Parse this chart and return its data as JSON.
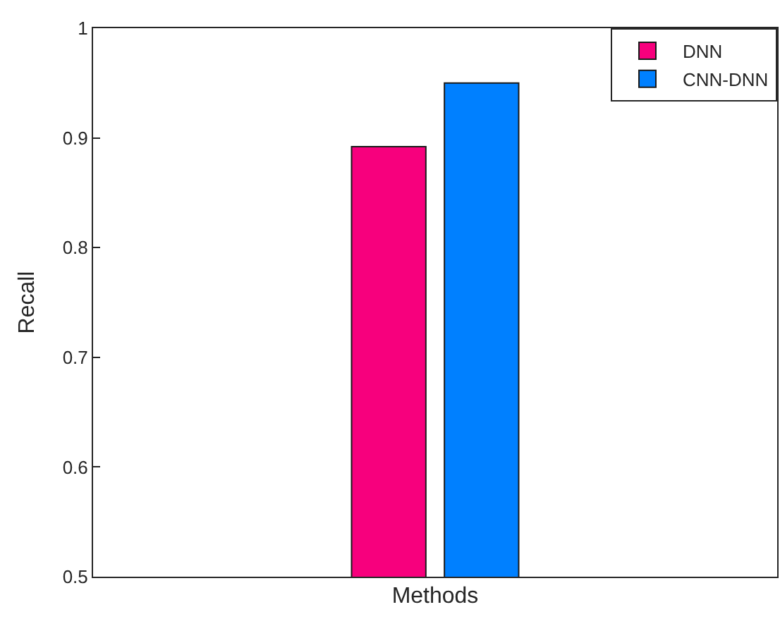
{
  "chart_data": {
    "type": "bar",
    "xlabel": "Methods",
    "ylabel": "Recall",
    "categories": [
      null
    ],
    "series": [
      {
        "name": "DNN",
        "color": "#f7007d",
        "values": [
          0.892
        ]
      },
      {
        "name": "CNN-DNN",
        "color": "#0080ff",
        "values": [
          0.95
        ]
      }
    ],
    "ylim": [
      0.5,
      1
    ],
    "yticks": [
      0.5,
      0.6,
      0.7,
      0.8,
      0.9,
      1
    ],
    "grid": false,
    "legend": "top right"
  }
}
